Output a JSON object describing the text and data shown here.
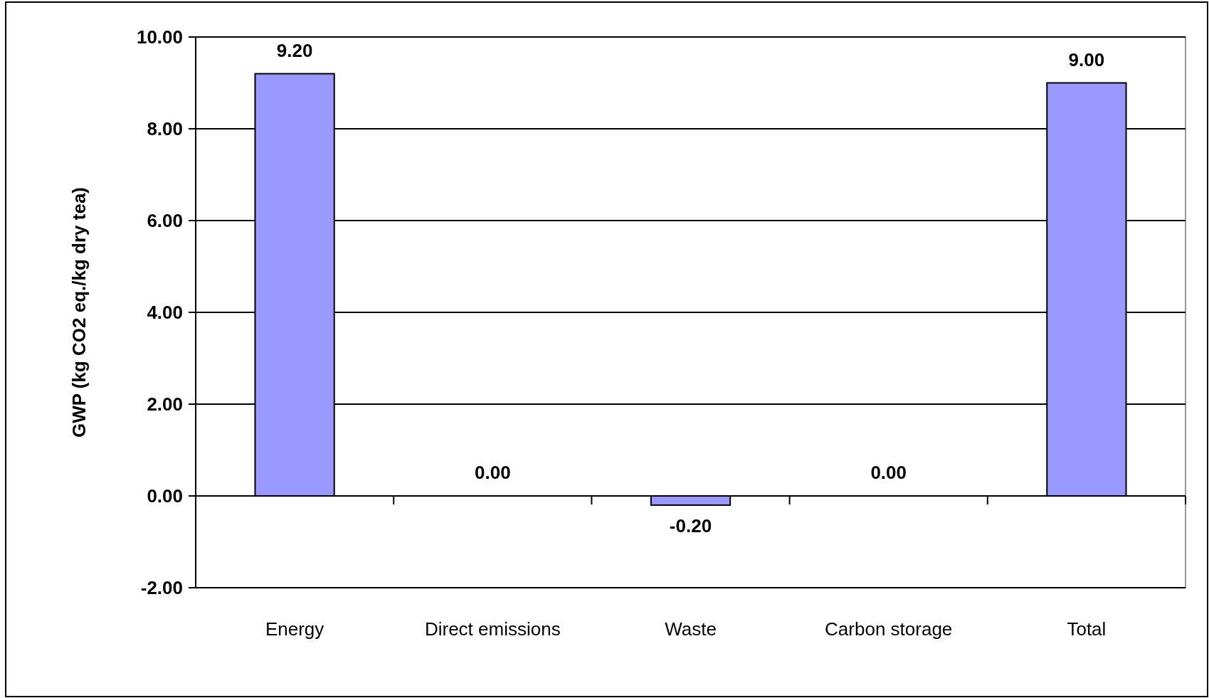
{
  "chart_data": {
    "type": "bar",
    "ylabel": "GWP (kg CO2 eq./kg dry tea)",
    "categories": [
      "Energy",
      "Direct emissions",
      "Waste",
      "Carbon storage",
      "Total"
    ],
    "values": [
      9.2,
      0,
      -0.2,
      0,
      9.0
    ],
    "value_labels": [
      "9.20",
      "0.00",
      "-0.20",
      "0.00",
      "9.00"
    ],
    "color": "#9999ff",
    "ylim": [
      -2,
      10
    ],
    "yticks": [
      {
        "value": -2,
        "label": "-2.00"
      },
      {
        "value": 0,
        "label": "0.00"
      },
      {
        "value": 2,
        "label": "2.00"
      },
      {
        "value": 4,
        "label": "4.00"
      },
      {
        "value": 6,
        "label": "6.00"
      },
      {
        "value": 8,
        "label": "8.00"
      },
      {
        "value": 10,
        "label": "10.00"
      }
    ],
    "grid": "y"
  }
}
